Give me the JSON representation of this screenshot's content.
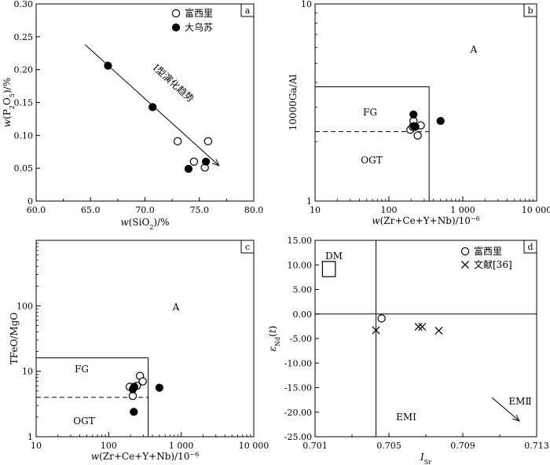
{
  "chart_data": [
    {
      "id": "a",
      "panel_label": "a",
      "type": "scatter",
      "xlabel": "w(SiO2)/%",
      "ylabel": "w(P2O5)/%",
      "xlim": [
        60.0,
        80.0
      ],
      "ylim": [
        0,
        0.3
      ],
      "xticks": [
        "60.0",
        "65.0",
        "70.0",
        "75.0",
        "80.0"
      ],
      "yticks": [
        "0",
        "0.05",
        "0.10",
        "0.15",
        "0.20",
        "0.25",
        "0.30"
      ],
      "series": [
        {
          "name": "富西里",
          "marker": "open-circle",
          "points": [
            [
              73.0,
              0.091
            ],
            [
              74.5,
              0.06
            ],
            [
              75.5,
              0.051
            ],
            [
              75.8,
              0.091
            ]
          ]
        },
        {
          "name": "大乌苏",
          "marker": "filled-circle",
          "points": [
            [
              66.6,
              0.206
            ],
            [
              70.7,
              0.143
            ],
            [
              74.0,
              0.049
            ],
            [
              75.6,
              0.06
            ]
          ]
        }
      ],
      "trend_arrow": {
        "from": [
          64.5,
          0.238
        ],
        "to": [
          76.8,
          0.054
        ]
      },
      "annotation": "I型演化趋势",
      "legend_position": "top-right"
    },
    {
      "id": "b",
      "panel_label": "b",
      "type": "scatter",
      "xlabel": "w(Zr+Ce+Y+Nb)/10⁻⁶",
      "ylabel": "10000Ga/Al",
      "xscale": "log",
      "yscale": "log",
      "xlim": [
        10,
        10000
      ],
      "ylim": [
        1,
        10
      ],
      "xticks": [
        {
          "v": 10,
          "label": "10"
        },
        {
          "v": 100,
          "label": "100"
        },
        {
          "v": 1000,
          "label": "1 000"
        },
        {
          "v": 10000,
          "label": "10 000"
        }
      ],
      "yticks": [
        {
          "v": 1,
          "label": "1"
        },
        {
          "v": 10,
          "label": "10"
        }
      ],
      "region_labels": [
        "A",
        "FG",
        "OGT"
      ],
      "boundaries": {
        "box_x": 350,
        "box_y": 3.8,
        "dashed_y": 2.25
      },
      "series": [
        {
          "name": "富西里",
          "marker": "open-circle",
          "points": [
            [
              195,
              2.3
            ],
            [
              215,
              2.55
            ],
            [
              245,
              2.15
            ],
            [
              270,
              2.42
            ],
            [
              210,
              2.38
            ]
          ]
        },
        {
          "name": "大乌苏",
          "marker": "filled-circle",
          "points": [
            [
              215,
              2.75
            ],
            [
              218,
              2.4
            ],
            [
              228,
              2.38
            ],
            [
              500,
              2.55
            ]
          ]
        }
      ]
    },
    {
      "id": "c",
      "panel_label": "c",
      "type": "scatter",
      "xlabel": "w(Zr+Ce+Y+Nb)/10⁻⁶",
      "ylabel": "TFeO/MgO",
      "xscale": "log",
      "yscale": "log",
      "xlim": [
        10,
        10000
      ],
      "ylim": [
        1,
        1000
      ],
      "xticks": [
        {
          "v": 10,
          "label": "10"
        },
        {
          "v": 100,
          "label": "100"
        },
        {
          "v": 1000,
          "label": "1 000"
        },
        {
          "v": 10000,
          "label": "10 000"
        }
      ],
      "yticks": [
        {
          "v": 1,
          "label": "1"
        },
        {
          "v": 10,
          "label": "10"
        },
        {
          "v": 100,
          "label": "100"
        }
      ],
      "region_labels": [
        "A",
        "FG",
        "OGT"
      ],
      "boundaries": {
        "box_x": 350,
        "box_y": 16,
        "dashed_y": 4
      },
      "series": [
        {
          "name": "富西里",
          "marker": "open-circle",
          "points": [
            [
              195,
              5.8
            ],
            [
              215,
              4.2
            ],
            [
              245,
              6.0
            ],
            [
              270,
              8.5
            ],
            [
              295,
              7.0
            ]
          ]
        },
        {
          "name": "大乌苏",
          "marker": "filled-circle",
          "points": [
            [
              215,
              5.3
            ],
            [
              225,
              5.8
            ],
            [
              222,
              2.4
            ],
            [
              500,
              5.6
            ]
          ]
        }
      ]
    },
    {
      "id": "d",
      "panel_label": "d",
      "type": "scatter",
      "xlabel": "ISr",
      "ylabel": "εNd(t)",
      "xlim": [
        0.701,
        0.713
      ],
      "ylim": [
        -25,
        15
      ],
      "xticks": [
        "0.701",
        "0.705",
        "0.709",
        "0.713"
      ],
      "yticks": [
        "15.00",
        "10.00",
        "5.00",
        "0.00",
        "-5.00",
        "-10.00",
        "-15.00",
        "-20.00",
        "-25.00"
      ],
      "reference_lines": {
        "vertical_x": 0.7043,
        "horizontal_y": 0
      },
      "region_labels": [
        "DM",
        "EMⅠ",
        "EMⅡ"
      ],
      "series": [
        {
          "name": "富西里",
          "marker": "open-circle",
          "points": [
            [
              0.7046,
              -0.9
            ]
          ]
        },
        {
          "name": "文献[36]",
          "marker": "cross",
          "points": [
            [
              0.7043,
              -3.3
            ],
            [
              0.7066,
              -2.6
            ],
            [
              0.7068,
              -2.6
            ],
            [
              0.7077,
              -3.4
            ]
          ]
        }
      ],
      "legend_position": "top-right"
    }
  ]
}
